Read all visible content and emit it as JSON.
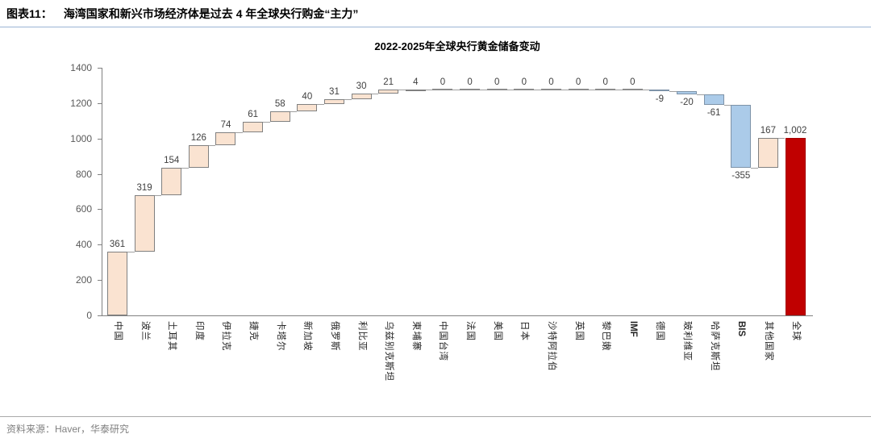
{
  "header": {
    "tag": "图表11：",
    "title": "海湾国家和新兴市场经济体是过去 4 年全球央行购金“主力”"
  },
  "footer": {
    "source": "资料来源：Haver，华泰研究"
  },
  "chart_data": {
    "type": "bar",
    "subtype": "waterfall",
    "title": "2022-2025年全球央行黄金储备变动",
    "xlabel": "",
    "ylabel": "",
    "ylim": [
      0,
      1400
    ],
    "ytick_interval": 200,
    "grid": false,
    "legend": "none",
    "categories": [
      "中国",
      "波兰",
      "土耳其",
      "印度",
      "伊拉克",
      "捷克",
      "卡塔尔",
      "新加坡",
      "俄罗斯",
      "利比亚",
      "乌兹别克斯坦",
      "柬埔寨",
      "中国台湾",
      "法国",
      "美国",
      "日本",
      "沙特阿拉伯",
      "英国",
      "黎巴嫩",
      "IMF",
      "德国",
      "玻利维亚",
      "哈萨克斯坦",
      "BIS",
      "其他国家",
      "全球"
    ],
    "values": [
      361,
      319,
      154,
      126,
      74,
      61,
      58,
      40,
      31,
      30,
      21,
      4,
      0,
      0,
      0,
      0,
      0,
      0,
      0,
      0,
      -9,
      -20,
      -61,
      -355,
      167,
      1002
    ],
    "value_labels": [
      "361",
      "319",
      "154",
      "126",
      "74",
      "61",
      "58",
      "40",
      "31",
      "30",
      "21",
      "4",
      "0",
      "0",
      "0",
      "0",
      "0",
      "0",
      "0",
      "0",
      "-9",
      "-20",
      "-61",
      "-355",
      "167",
      "1,002"
    ],
    "bar_kinds": [
      "up",
      "up",
      "up",
      "up",
      "up",
      "up",
      "up",
      "up",
      "up",
      "up",
      "up",
      "up",
      "flat",
      "flat",
      "flat",
      "flat",
      "flat",
      "flat",
      "flat",
      "flat",
      "down",
      "down",
      "down",
      "down",
      "up",
      "total"
    ],
    "bold_labels": [
      "IMF",
      "BIS"
    ],
    "bar_fill_overrides": {
      "德国": "#D5BFAE"
    },
    "colors": {
      "up": "#FAE3D1",
      "down": "#ABCBE9",
      "total": "#C00000",
      "flat": "#8C8C8C",
      "bar_border": "#808080",
      "connector": "#A0A0A0",
      "axis": "#808080",
      "ytick_label": "#595959",
      "value_label": "#3F3F3F",
      "header_rule": "#9BB5D5"
    }
  }
}
